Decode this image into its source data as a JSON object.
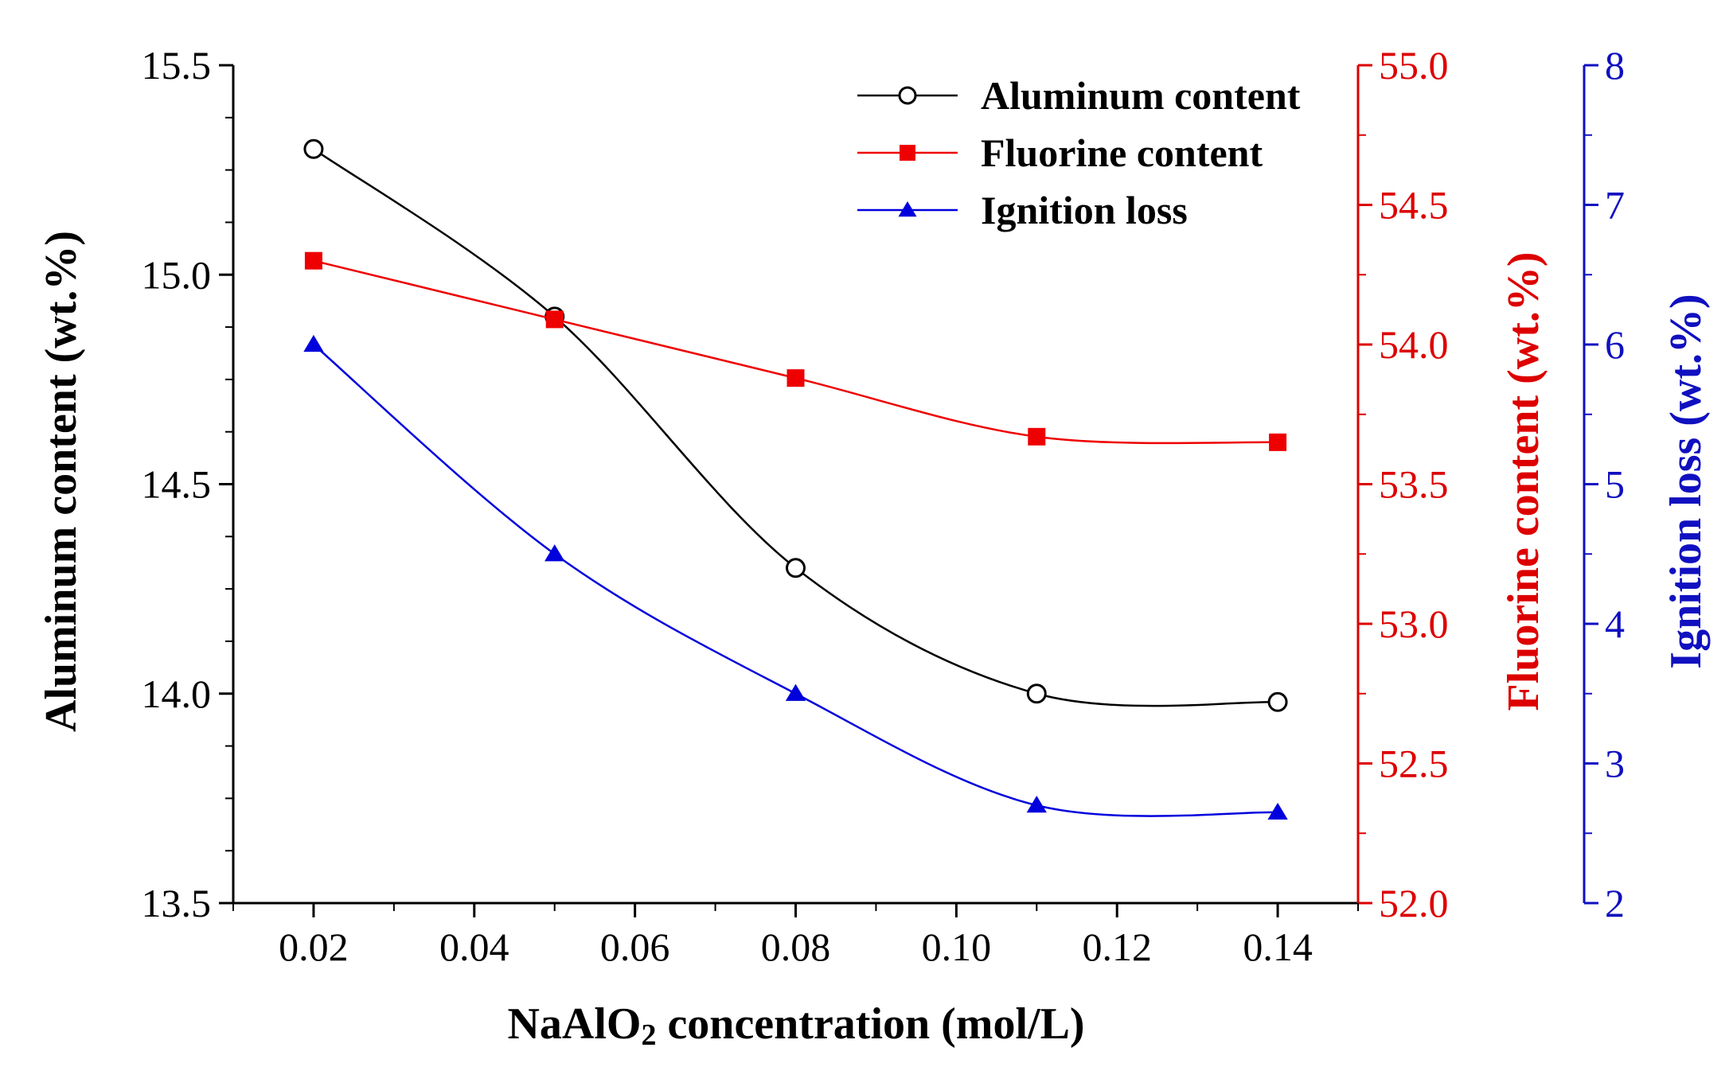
{
  "chart_data": {
    "type": "line",
    "xlabel": "NaAlO₂ concentration (mol/L)",
    "xlabel_main": "NaAlO",
    "xlabel_sub": "2",
    "xlabel_rest": " concentration (mol/L)",
    "xlim": [
      0.01,
      0.15
    ],
    "x_ticks": [
      "0.02",
      "0.04",
      "0.06",
      "0.08",
      "0.10",
      "0.12",
      "0.14"
    ],
    "x": [
      0.02,
      0.05,
      0.08,
      0.11,
      0.14
    ],
    "axes": {
      "left": {
        "label": "Aluminum content (wt.%)",
        "ylim": [
          13.5,
          15.5
        ],
        "ticks": [
          "13.5",
          "14.0",
          "14.5",
          "15.0",
          "15.5"
        ],
        "color": "#000000"
      },
      "right1": {
        "label": "Fluorine content (wt.%)",
        "ylim": [
          52.0,
          55.0
        ],
        "ticks": [
          "52.0",
          "52.5",
          "53.0",
          "53.5",
          "54.0",
          "54.5",
          "55.0"
        ],
        "color": "#dd0000"
      },
      "right2": {
        "label": "Ignition loss (wt.%)",
        "ylim": [
          2,
          8
        ],
        "ticks": [
          "2",
          "3",
          "4",
          "5",
          "6",
          "7",
          "8"
        ],
        "color": "#1010c0"
      }
    },
    "series": [
      {
        "name": "Aluminum content",
        "axis": "left",
        "marker": "open-circle",
        "color": "#000000",
        "values": [
          15.3,
          14.9,
          14.3,
          14.0,
          13.98
        ]
      },
      {
        "name": "Fluorine content",
        "axis": "right1",
        "marker": "square",
        "color": "#ee0000",
        "values": [
          54.3,
          54.09,
          53.88,
          53.67,
          53.65
        ]
      },
      {
        "name": "Ignition loss",
        "axis": "right2",
        "marker": "triangle",
        "color": "#0000dd",
        "values": [
          6.0,
          4.5,
          3.5,
          2.7,
          2.65
        ]
      }
    ],
    "legend_position": "top-right"
  }
}
